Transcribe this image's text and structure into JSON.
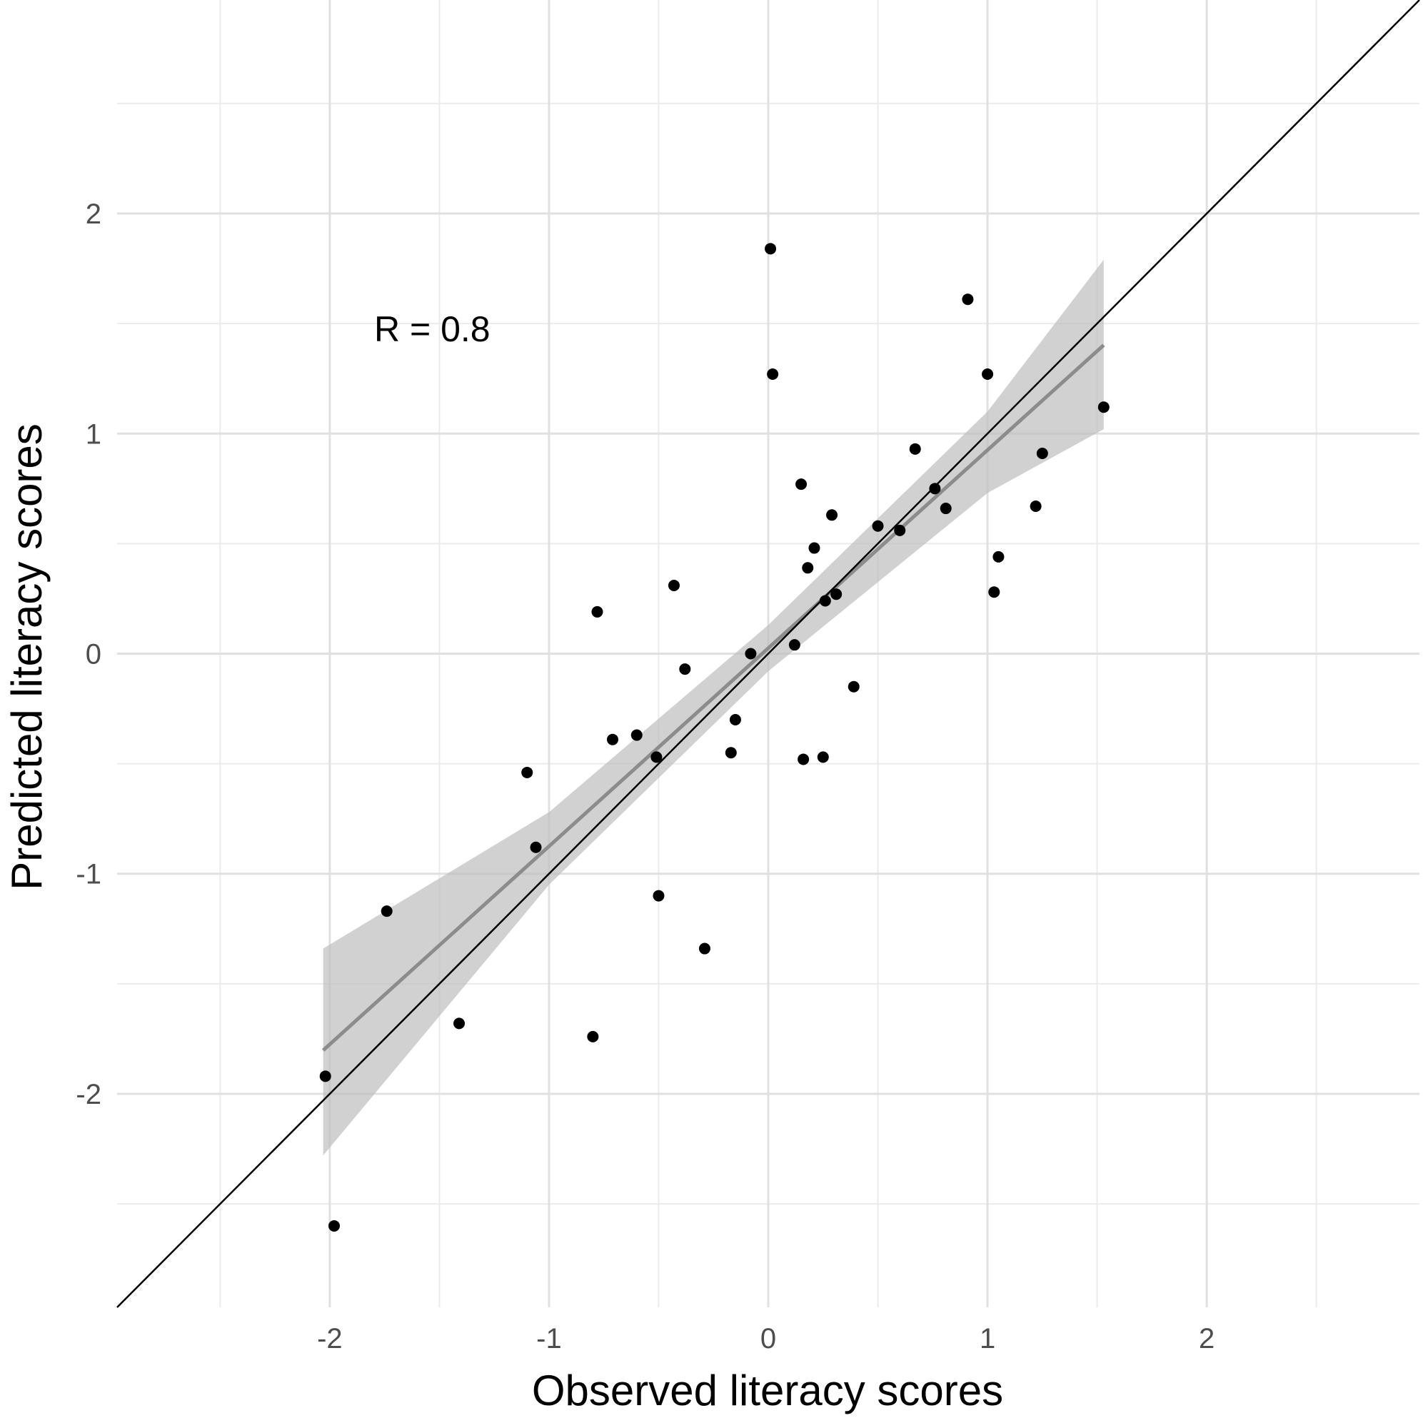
{
  "chart_data": {
    "type": "scatter",
    "xlabel": "Observed literacy scores",
    "ylabel": "Predicted literacy scores",
    "xlim": [
      -2.97,
      2.97
    ],
    "ylim": [
      -2.97,
      2.97
    ],
    "x_ticks": [
      -2,
      -1,
      0,
      1,
      2
    ],
    "x_tick_labels": [
      "-2",
      "-1",
      "0",
      "1",
      "2"
    ],
    "y_ticks": [
      -2,
      -1,
      0,
      1,
      2
    ],
    "y_tick_labels": [
      "-2",
      "-1",
      "0",
      "1",
      "2"
    ],
    "grid": true,
    "annotation": "R = 0.8",
    "identity_line": true,
    "regression": {
      "x_range": [
        -2.03,
        1.53
      ],
      "slope": 0.9,
      "intercept": 0.025,
      "ci_band": [
        {
          "x": -2.03,
          "lo": -2.28,
          "hi": -1.34
        },
        {
          "x": -1.0,
          "lo": -1.05,
          "hi": -0.72
        },
        {
          "x": 0.0,
          "lo": -0.08,
          "hi": 0.13
        },
        {
          "x": 1.0,
          "lo": 0.73,
          "hi": 1.1
        },
        {
          "x": 1.53,
          "lo": 1.02,
          "hi": 1.79
        }
      ]
    },
    "points": [
      {
        "x": -2.02,
        "y": -1.92
      },
      {
        "x": -1.98,
        "y": -2.6
      },
      {
        "x": -1.74,
        "y": -1.17
      },
      {
        "x": -1.41,
        "y": -1.68
      },
      {
        "x": -1.1,
        "y": -0.54
      },
      {
        "x": -1.06,
        "y": -0.88
      },
      {
        "x": -0.8,
        "y": -1.74
      },
      {
        "x": -0.78,
        "y": 0.19
      },
      {
        "x": -0.71,
        "y": -0.39
      },
      {
        "x": -0.6,
        "y": -0.37
      },
      {
        "x": -0.51,
        "y": -0.47
      },
      {
        "x": -0.5,
        "y": -1.1
      },
      {
        "x": -0.43,
        "y": 0.31
      },
      {
        "x": -0.38,
        "y": -0.07
      },
      {
        "x": -0.29,
        "y": -1.34
      },
      {
        "x": -0.17,
        "y": -0.45
      },
      {
        "x": -0.15,
        "y": -0.3
      },
      {
        "x": -0.08,
        "y": 0.0
      },
      {
        "x": 0.01,
        "y": 1.84
      },
      {
        "x": 0.02,
        "y": 1.27
      },
      {
        "x": 0.12,
        "y": 0.04
      },
      {
        "x": 0.15,
        "y": 0.77
      },
      {
        "x": 0.16,
        "y": -0.48
      },
      {
        "x": 0.18,
        "y": 0.39
      },
      {
        "x": 0.21,
        "y": 0.48
      },
      {
        "x": 0.25,
        "y": -0.47
      },
      {
        "x": 0.26,
        "y": 0.24
      },
      {
        "x": 0.29,
        "y": 0.63
      },
      {
        "x": 0.31,
        "y": 0.27
      },
      {
        "x": 0.39,
        "y": -0.15
      },
      {
        "x": 0.5,
        "y": 0.58
      },
      {
        "x": 0.6,
        "y": 0.56
      },
      {
        "x": 0.67,
        "y": 0.93
      },
      {
        "x": 0.76,
        "y": 0.75
      },
      {
        "x": 0.81,
        "y": 0.66
      },
      {
        "x": 0.91,
        "y": 1.61
      },
      {
        "x": 1.0,
        "y": 1.27
      },
      {
        "x": 1.03,
        "y": 0.28
      },
      {
        "x": 1.05,
        "y": 0.44
      },
      {
        "x": 1.22,
        "y": 0.67
      },
      {
        "x": 1.25,
        "y": 0.91
      },
      {
        "x": 1.53,
        "y": 1.12
      }
    ]
  }
}
